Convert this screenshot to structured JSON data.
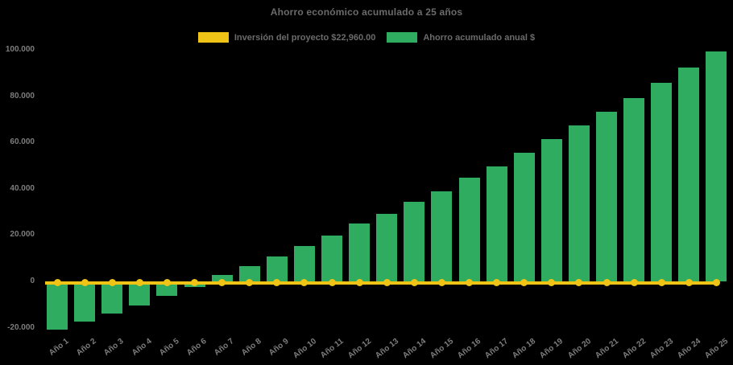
{
  "title": "Ahorro económico acumulado a 25 años",
  "legend": [
    {
      "label": "Inversión del proyecto $22,960.00",
      "color": "#EFC417"
    },
    {
      "label": "Ahorro acumulado anual $",
      "color": "#2FAC60"
    }
  ],
  "colors": {
    "background": "#000000",
    "bars": "#2FAC60",
    "line": "#EFC417",
    "title_text": "#6b6b6b",
    "tick_text": "#7d7d7d"
  },
  "chart_data": {
    "type": "bar",
    "title": "Ahorro económico acumulado a 25 años",
    "categories": [
      "Año 1",
      "Año 2",
      "Año 3",
      "Año 4",
      "Año 5",
      "Año 6",
      "Año 7",
      "Año 8",
      "Año 9",
      "Año 10",
      "Año 11",
      "Año 12",
      "Año 13",
      "Año 14",
      "Año 15",
      "Año 16",
      "Año 17",
      "Año 18",
      "Año 19",
      "Año 20",
      "Año 21",
      "Año 22",
      "Año 23",
      "Año 24",
      "Año 25"
    ],
    "series": [
      {
        "name": "Ahorro acumulado anual $",
        "type": "bar",
        "color": "#2FAC60",
        "values": [
          -20000,
          -16600,
          -13100,
          -9400,
          -5500,
          -1700,
          3100,
          6700,
          10900,
          15400,
          20100,
          25200,
          29300,
          34600,
          39200,
          44800,
          49800,
          55700,
          61600,
          67600,
          73300,
          79500,
          86000,
          92700,
          99600
        ]
      },
      {
        "name": "Inversión del proyecto $22,960.00",
        "type": "line",
        "color": "#EFC417",
        "marker": "circle",
        "values": [
          0,
          0,
          0,
          0,
          0,
          0,
          0,
          0,
          0,
          0,
          0,
          0,
          0,
          0,
          0,
          0,
          0,
          0,
          0,
          0,
          0,
          0,
          0,
          0,
          0
        ]
      }
    ],
    "xlabel": "",
    "ylabel": "",
    "ylim": [
      -20000,
      100000
    ],
    "y_ticks": [
      "100.000",
      "80.000",
      "60.000",
      "40.000",
      "20.000",
      "0",
      "-20.000"
    ],
    "y_tick_values": [
      100000,
      80000,
      60000,
      40000,
      20000,
      0,
      -20000
    ],
    "grid": false,
    "legend_position": "top"
  }
}
